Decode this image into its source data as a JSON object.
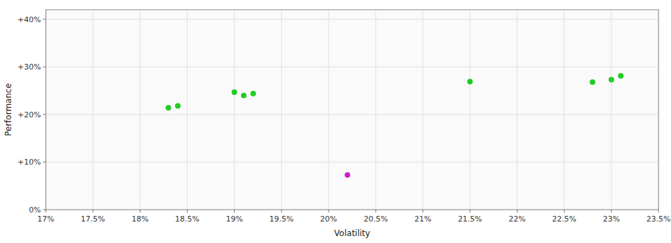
{
  "chart_data": {
    "type": "scatter",
    "xlabel": "Volatility",
    "ylabel": "Performance",
    "xlim": [
      0.17,
      0.235
    ],
    "ylim": [
      0.0,
      0.42
    ],
    "xticks": [
      {
        "value": 0.17,
        "label": "17%"
      },
      {
        "value": 0.175,
        "label": "17.5%"
      },
      {
        "value": 0.18,
        "label": "18%"
      },
      {
        "value": 0.185,
        "label": "18.5%"
      },
      {
        "value": 0.19,
        "label": "19%"
      },
      {
        "value": 0.195,
        "label": "19.5%"
      },
      {
        "value": 0.2,
        "label": "20%"
      },
      {
        "value": 0.205,
        "label": "20.5%"
      },
      {
        "value": 0.21,
        "label": "21%"
      },
      {
        "value": 0.215,
        "label": "21.5%"
      },
      {
        "value": 0.22,
        "label": "22%"
      },
      {
        "value": 0.225,
        "label": "22.5%"
      },
      {
        "value": 0.23,
        "label": "23%"
      },
      {
        "value": 0.235,
        "label": "23.5%"
      }
    ],
    "yticks": [
      {
        "value": 0.0,
        "label": "0%"
      },
      {
        "value": 0.1,
        "label": "+10%"
      },
      {
        "value": 0.2,
        "label": "+20%"
      },
      {
        "value": 0.3,
        "label": "+30%"
      },
      {
        "value": 0.4,
        "label": "+40%"
      }
    ],
    "grid": true,
    "series": [
      {
        "color": "#22cc22",
        "x": [
          0.183,
          0.184,
          0.19,
          0.191,
          0.192,
          0.215,
          0.228,
          0.23,
          0.231
        ],
        "values": [
          0.214,
          0.218,
          0.247,
          0.24,
          0.244,
          0.269,
          0.268,
          0.273,
          0.281
        ]
      },
      {
        "color": "#cc22cc",
        "x": [
          0.202
        ],
        "values": [
          0.073
        ]
      }
    ]
  }
}
